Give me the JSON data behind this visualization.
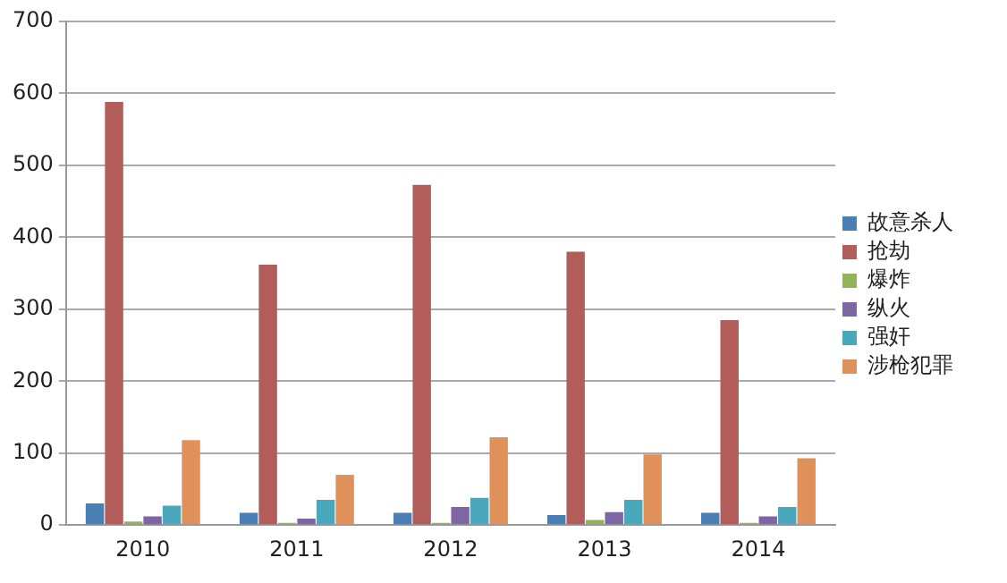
{
  "chart_data": {
    "type": "bar",
    "categories": [
      "2010",
      "2011",
      "2012",
      "2013",
      "2014"
    ],
    "series": [
      {
        "name": "故意杀人",
        "color": "#4a7fb5",
        "values": [
          30,
          17,
          17,
          14,
          17
        ]
      },
      {
        "name": "抢劫",
        "color": "#b35d5b",
        "values": [
          588,
          362,
          473,
          380,
          285
        ]
      },
      {
        "name": "爆炸",
        "color": "#92b35a",
        "values": [
          5,
          3,
          3,
          7,
          3
        ]
      },
      {
        "name": "纵火",
        "color": "#7d66a3",
        "values": [
          12,
          9,
          25,
          18,
          12
        ]
      },
      {
        "name": "强奸",
        "color": "#4aa8bd",
        "values": [
          27,
          35,
          38,
          35,
          25
        ]
      },
      {
        "name": "涉枪犯罪",
        "color": "#e0915a",
        "values": [
          118,
          70,
          122,
          98,
          93
        ]
      }
    ],
    "ylim": [
      0,
      700
    ],
    "yticks": [
      0,
      100,
      200,
      300,
      400,
      500,
      600,
      700
    ],
    "grid": "y",
    "legend": "right"
  }
}
